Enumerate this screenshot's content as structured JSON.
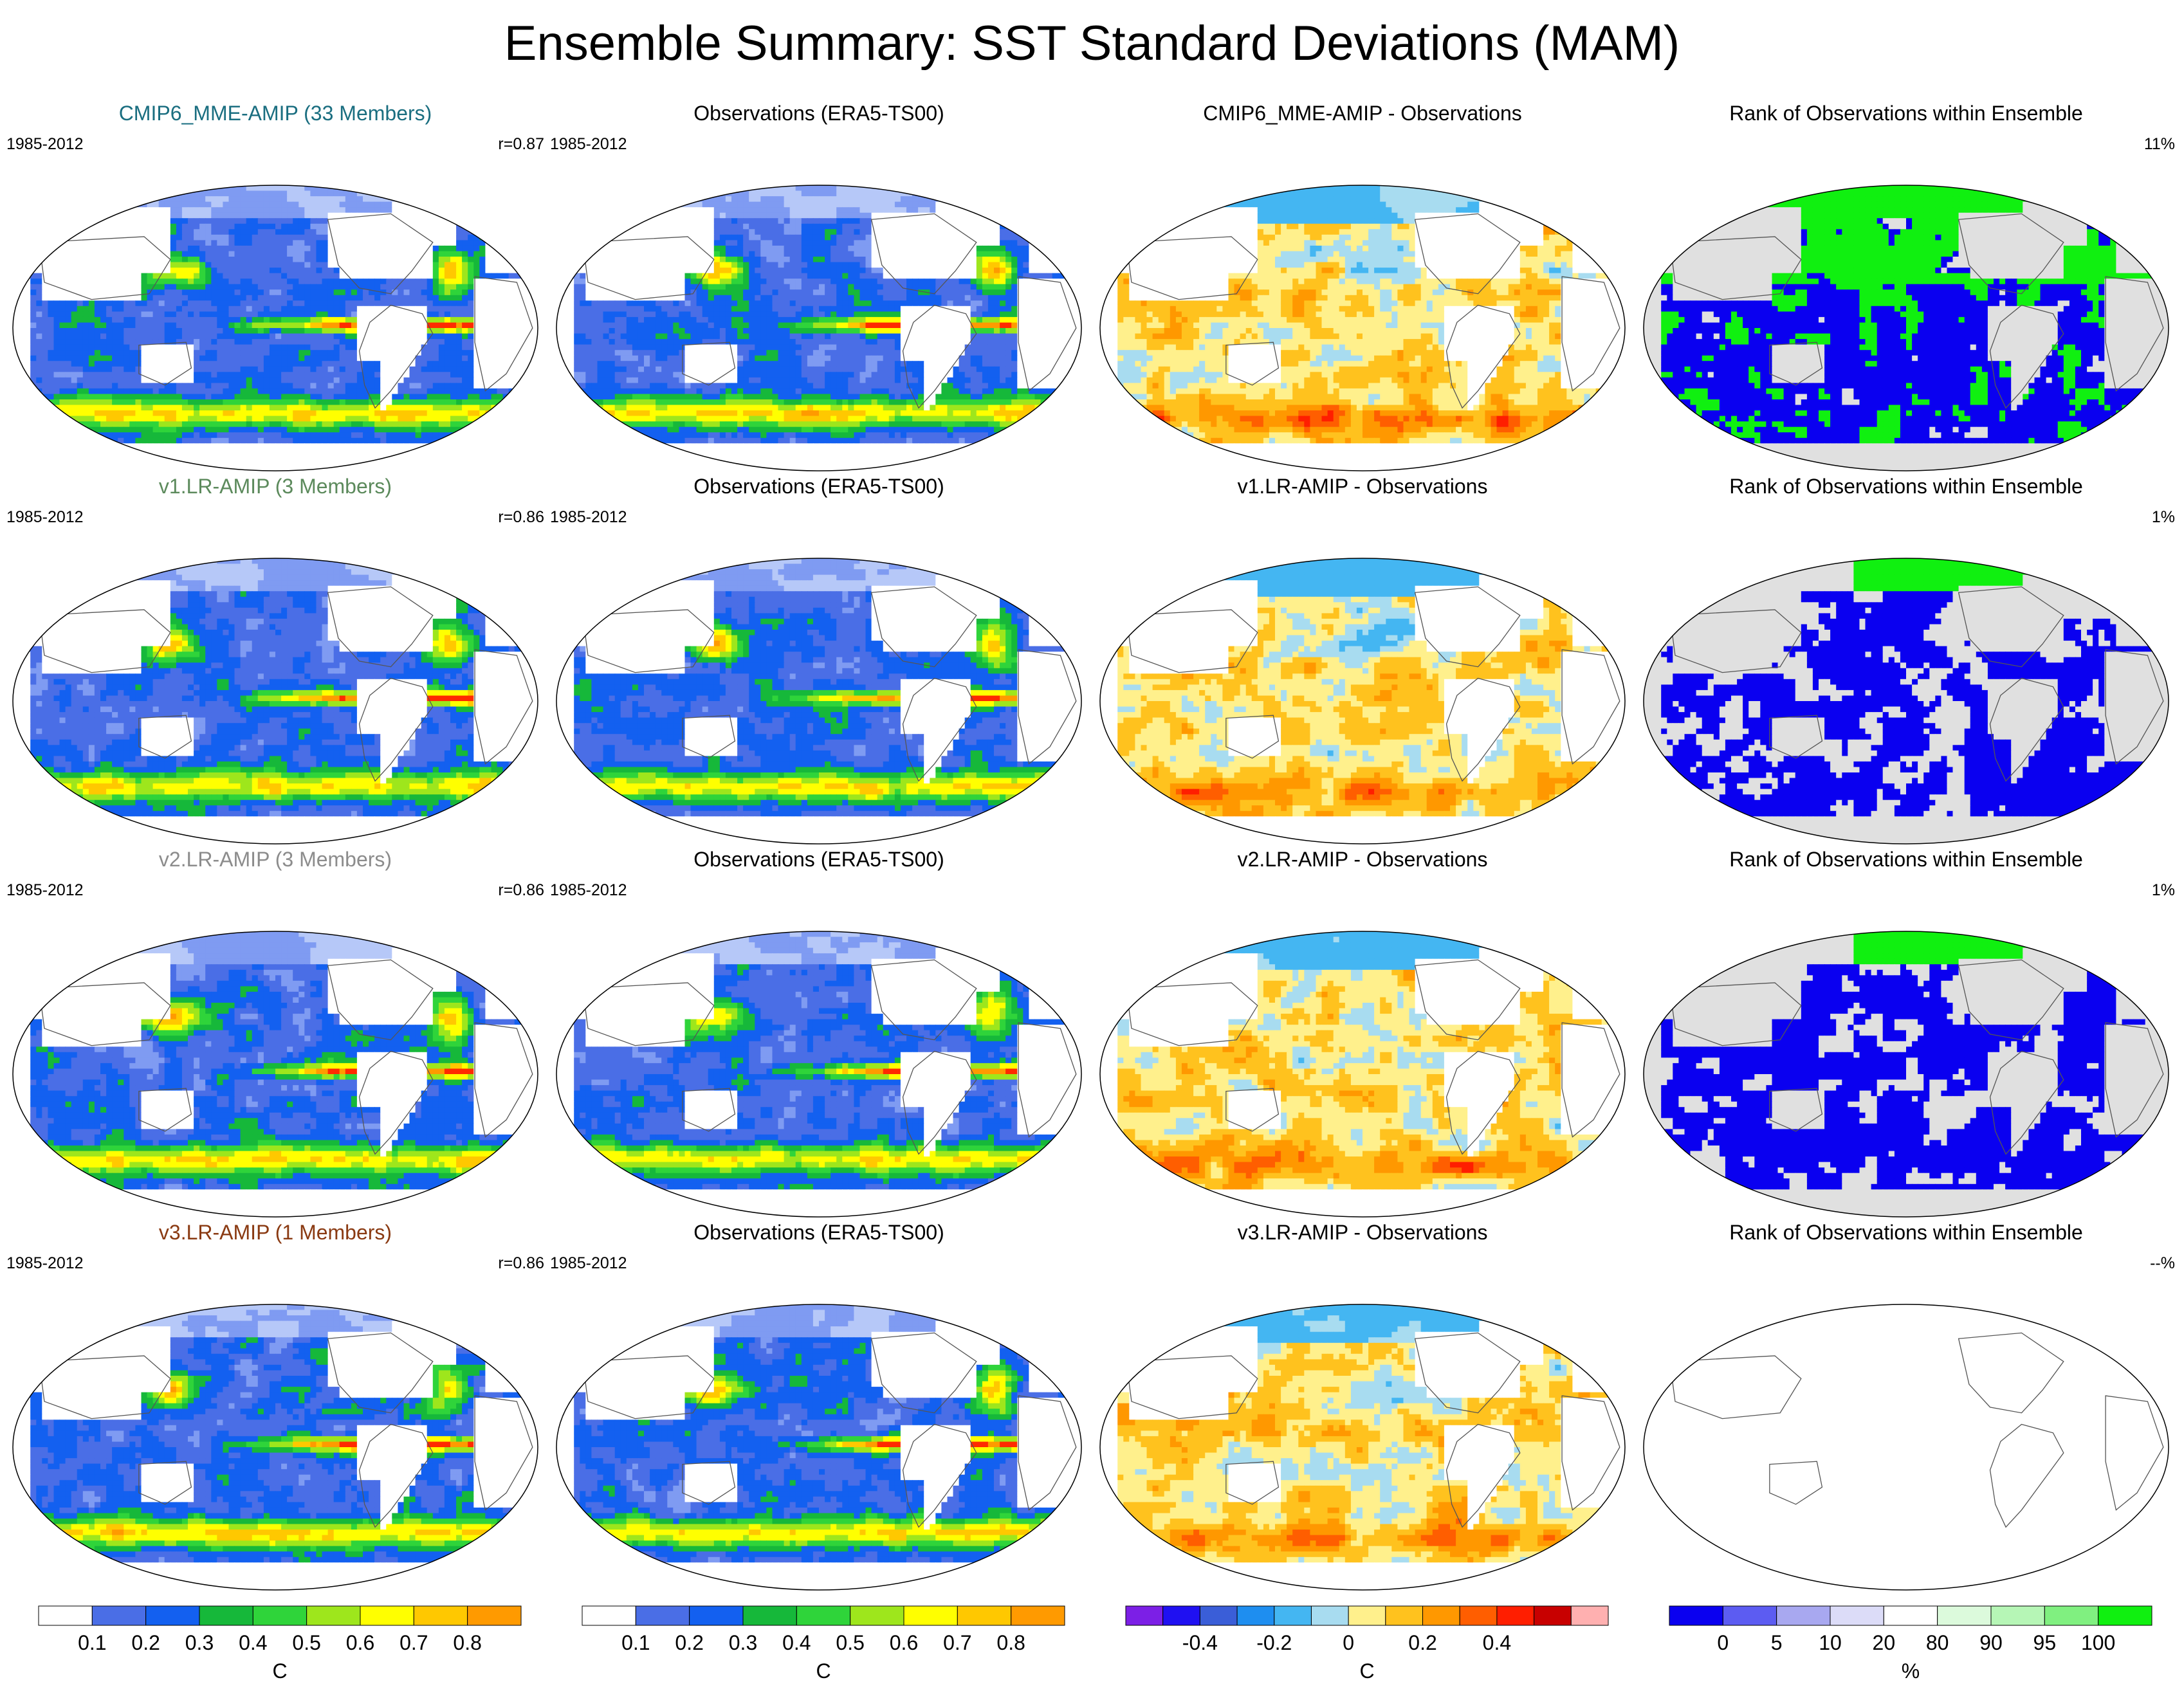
{
  "title": "Ensemble Summary: SST Standard Deviations (MAM)",
  "colors": {
    "std": [
      "#ffffff",
      "#b6c8f8",
      "#7f9bf2",
      "#4a6ee6",
      "#1360f0",
      "#16b83a",
      "#2fd43a",
      "#9ee61c",
      "#ffff00",
      "#ffc800",
      "#ff9a00",
      "#ff2a00"
    ],
    "diff": [
      "#7c1fe6",
      "#1f10f2",
      "#3a5ed8",
      "#1e8ef0",
      "#44b6f2",
      "#a8dcf0",
      "#fff08c",
      "#ffc21e",
      "#ff9800",
      "#ff5e00",
      "#ff1e00",
      "#c80000",
      "#ffb0b0"
    ],
    "rank": [
      "#0a00f0",
      "#5c5cf2",
      "#a8a8f0",
      "#dcdcf8",
      "#ffffff",
      "#dcfadc",
      "#b6f6b6",
      "#80f080",
      "#10f010"
    ],
    "land": "#ffffff",
    "rank_na": "#e0e0e0",
    "coast": "#555555"
  },
  "rows": [
    {
      "model": {
        "title": "CMIP6_MME-AMIP (33 Members)",
        "title_color": "#1a6e80",
        "period": "1985-2012",
        "stat": "r=0.87"
      },
      "obs": {
        "title": "Observations (ERA5-TS00)",
        "period": "1985-2012"
      },
      "diff": {
        "title": "CMIP6_MME-AMIP - Observations"
      },
      "rank": {
        "title": "Rank of Observations within Ensemble",
        "stat": "11%",
        "pattern": "mixed"
      }
    },
    {
      "model": {
        "title": "v1.LR-AMIP (3 Members)",
        "title_color": "#5c8a5c",
        "period": "1985-2012",
        "stat": "r=0.86"
      },
      "obs": {
        "title": "Observations (ERA5-TS00)",
        "period": "1985-2012"
      },
      "diff": {
        "title": "v1.LR-AMIP - Observations"
      },
      "rank": {
        "title": "Rank of Observations within Ensemble",
        "stat": "1%",
        "pattern": "low"
      }
    },
    {
      "model": {
        "title": "v2.LR-AMIP (3 Members)",
        "title_color": "#8c8c8c",
        "period": "1985-2012",
        "stat": "r=0.86"
      },
      "obs": {
        "title": "Observations (ERA5-TS00)",
        "period": "1985-2012"
      },
      "diff": {
        "title": "v2.LR-AMIP - Observations"
      },
      "rank": {
        "title": "Rank of Observations within Ensemble",
        "stat": "1%",
        "pattern": "low"
      }
    },
    {
      "model": {
        "title": "v3.LR-AMIP (1 Members)",
        "title_color": "#8a3a12",
        "period": "1985-2012",
        "stat": "r=0.86"
      },
      "obs": {
        "title": "Observations (ERA5-TS00)",
        "period": "1985-2012"
      },
      "diff": {
        "title": "v3.LR-AMIP - Observations"
      },
      "rank": {
        "title": "Rank of Observations within Ensemble",
        "stat": "--%",
        "pattern": "empty"
      }
    }
  ],
  "colorbars": [
    {
      "labels": [
        "0.1",
        "0.2",
        "0.3",
        "0.4",
        "0.5",
        "0.6",
        "0.7",
        "0.8"
      ],
      "unit": "C",
      "palette": "std",
      "n": 9
    },
    {
      "labels": [
        "0.1",
        "0.2",
        "0.3",
        "0.4",
        "0.5",
        "0.6",
        "0.7",
        "0.8"
      ],
      "unit": "C",
      "palette": "std",
      "n": 9
    },
    {
      "labels": [
        "-0.4",
        "-0.2",
        "0",
        "0.2",
        "0.4"
      ],
      "unit": "C",
      "palette": "diff",
      "n": 13
    },
    {
      "labels": [
        "0",
        "5",
        "10",
        "20",
        "80",
        "90",
        "95",
        "100"
      ],
      "unit": "%",
      "palette": "rank",
      "n": 9
    }
  ]
}
